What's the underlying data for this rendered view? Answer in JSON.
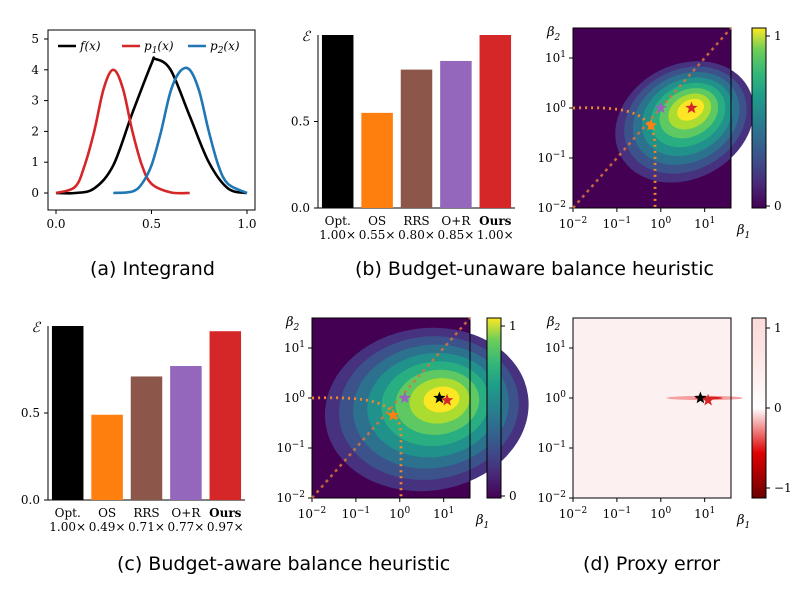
{
  "captions": {
    "a": "(a) Integrand",
    "b": "(b) Budget-unaware balance heuristic",
    "c": "(c) Budget-aware balance heuristic",
    "d": "(d) Proxy error"
  },
  "colors": {
    "f": "#000000",
    "p1": "#d62728",
    "p2": "#1f77b4",
    "opt": "#000000",
    "os": "#ff7f0e",
    "rrs": "#8c564b",
    "or": "#9467bd",
    "ours": "#d62728",
    "dotted": "#f0872b"
  },
  "chart_data": [
    {
      "id": "a",
      "type": "line",
      "xlim": [
        0,
        1
      ],
      "ylim": [
        0,
        5
      ],
      "xticks": [
        "0.0",
        "0.5",
        "1.0"
      ],
      "yticks": [
        "0",
        "1",
        "2",
        "3",
        "4",
        "5"
      ],
      "legend": "top",
      "series": [
        {
          "name": "f(x)",
          "color": "#000000",
          "x": [
            0,
            0.1,
            0.2,
            0.3,
            0.4,
            0.5,
            0.52,
            0.6,
            0.7,
            0.8,
            0.9,
            1.0
          ],
          "y": [
            0,
            0.0,
            0.15,
            0.9,
            2.6,
            4.2,
            4.35,
            4.0,
            2.5,
            1.0,
            0.15,
            0.0
          ]
        },
        {
          "name": "p1(x)",
          "color": "#d62728",
          "x": [
            0,
            0.1,
            0.15,
            0.2,
            0.25,
            0.3,
            0.35,
            0.4,
            0.45,
            0.5,
            0.6,
            0.7
          ],
          "y": [
            0,
            0.2,
            0.9,
            2.0,
            3.4,
            4.0,
            3.4,
            2.0,
            0.9,
            0.3,
            0.02,
            0
          ]
        },
        {
          "name": "p2(x)",
          "color": "#1f77b4",
          "x": [
            0.3,
            0.4,
            0.45,
            0.5,
            0.55,
            0.6,
            0.65,
            0.7,
            0.75,
            0.8,
            0.85,
            0.9,
            1.0
          ],
          "y": [
            0,
            0.05,
            0.3,
            0.9,
            2.0,
            3.3,
            3.95,
            4.0,
            3.3,
            2.0,
            0.9,
            0.3,
            0.0
          ]
        }
      ]
    },
    {
      "id": "b-bars",
      "type": "bar",
      "ylabel": "ℰ",
      "ylim": [
        0,
        1
      ],
      "yticks": [
        "0.0",
        "0.5",
        "1"
      ],
      "categories": [
        "Opt.",
        "OS",
        "RRS",
        "O+R",
        "Ours"
      ],
      "multipliers": [
        "1.00×",
        "0.55×",
        "0.80×",
        "0.85×",
        "1.00×"
      ],
      "values": [
        1.0,
        0.55,
        0.8,
        0.85,
        1.0
      ]
    },
    {
      "id": "b-heat",
      "type": "heatmap",
      "xlabel": "β1",
      "ylabel": "β2",
      "scale": "log",
      "xticks": [
        "10−2",
        "10−1",
        "100",
        "101"
      ],
      "yticks": [
        "10−2",
        "10−1",
        "100",
        "101"
      ],
      "colorbar_ticks": [
        "0",
        "1"
      ],
      "colormap": "viridis",
      "peak": [
        5,
        1
      ],
      "markers": [
        {
          "name": "optimum",
          "color": "#d62728",
          "x": 5,
          "y": 1
        },
        {
          "name": "balance",
          "color": "#9467bd",
          "x": 1,
          "y": 1
        },
        {
          "name": "budget",
          "color": "#ff7f0e",
          "x": 0.6,
          "y": 0.45
        }
      ]
    },
    {
      "id": "c-bars",
      "type": "bar",
      "ylabel": "ℰ",
      "ylim": [
        0,
        1
      ],
      "yticks": [
        "0.0",
        "0.5",
        "1"
      ],
      "categories": [
        "Opt.",
        "OS",
        "RRS",
        "O+R",
        "Ours"
      ],
      "multipliers": [
        "1.00×",
        "0.49×",
        "0.71×",
        "0.77×",
        "0.97×"
      ],
      "values": [
        1.0,
        0.49,
        0.71,
        0.77,
        0.97
      ]
    },
    {
      "id": "c-heat",
      "type": "heatmap",
      "xlabel": "β1",
      "ylabel": "β2",
      "scale": "log",
      "xticks": [
        "10−2",
        "10−1",
        "100",
        "101"
      ],
      "yticks": [
        "10−2",
        "10−1",
        "100",
        "101"
      ],
      "colorbar_ticks": [
        "0",
        "1"
      ],
      "colormap": "viridis",
      "peak": [
        10,
        1
      ],
      "markers": [
        {
          "name": "optimum",
          "color": "#000000",
          "x": 8,
          "y": 1
        },
        {
          "name": "ours",
          "color": "#d62728",
          "x": 12,
          "y": 0.9
        },
        {
          "name": "balance",
          "color": "#9467bd",
          "x": 1.3,
          "y": 1
        },
        {
          "name": "budget",
          "color": "#ff7f0e",
          "x": 0.7,
          "y": 0.45
        }
      ]
    },
    {
      "id": "d-heat",
      "type": "heatmap",
      "xlabel": "β1",
      "ylabel": "β2",
      "scale": "log",
      "xticks": [
        "10−2",
        "10−1",
        "100",
        "101"
      ],
      "yticks": [
        "10−2",
        "10−1",
        "100",
        "101"
      ],
      "colorbar_ticks": [
        "−1",
        "0",
        "1"
      ],
      "colormap": "diverging-red",
      "markers": [
        {
          "name": "optimum",
          "color": "#000000",
          "x": 8,
          "y": 1
        },
        {
          "name": "ours",
          "color": "#d62728",
          "x": 12,
          "y": 0.9
        }
      ]
    }
  ]
}
